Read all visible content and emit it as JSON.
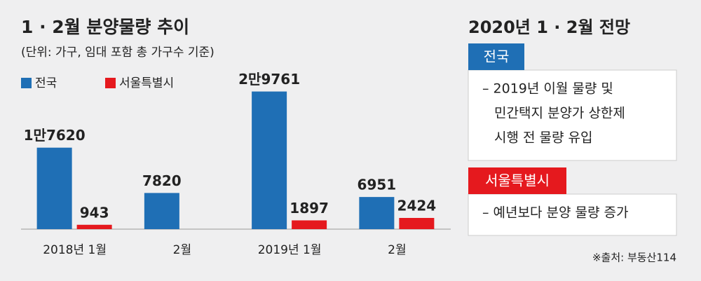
{
  "chart_data": {
    "type": "bar",
    "title": "1 · 2월 분양물량 추이",
    "subtitle": "(단위: 가구, 임대 포함 총 가구수 기준)",
    "categories": [
      "2018년 1월",
      "2월",
      "2019년 1월",
      "2월"
    ],
    "series": [
      {
        "name": "전국",
        "color": "#1f6fb5",
        "values": [
          17620,
          7820,
          29761,
          6951
        ],
        "value_labels": [
          "1만7620",
          "7820",
          "2만9761",
          "6951"
        ]
      },
      {
        "name": "서울특별시",
        "color": "#e5191e",
        "values": [
          943,
          null,
          1897,
          2424
        ]
      }
    ],
    "ylim": [
      0,
      30000
    ]
  },
  "panel": {
    "title": "2020년 1 · 2월 전망",
    "sections": [
      {
        "label": "전국",
        "color": "#1f6fb5",
        "lines": [
          "– 2019년 이월 물량 및",
          "민간택지 분양가 상한제",
          "시행 전 물량 유입"
        ]
      },
      {
        "label": "서울특별시",
        "color": "#e5191e",
        "lines": [
          "– 예년보다 분양 물량 증가"
        ]
      }
    ],
    "source": "※출처: 부동산114"
  }
}
